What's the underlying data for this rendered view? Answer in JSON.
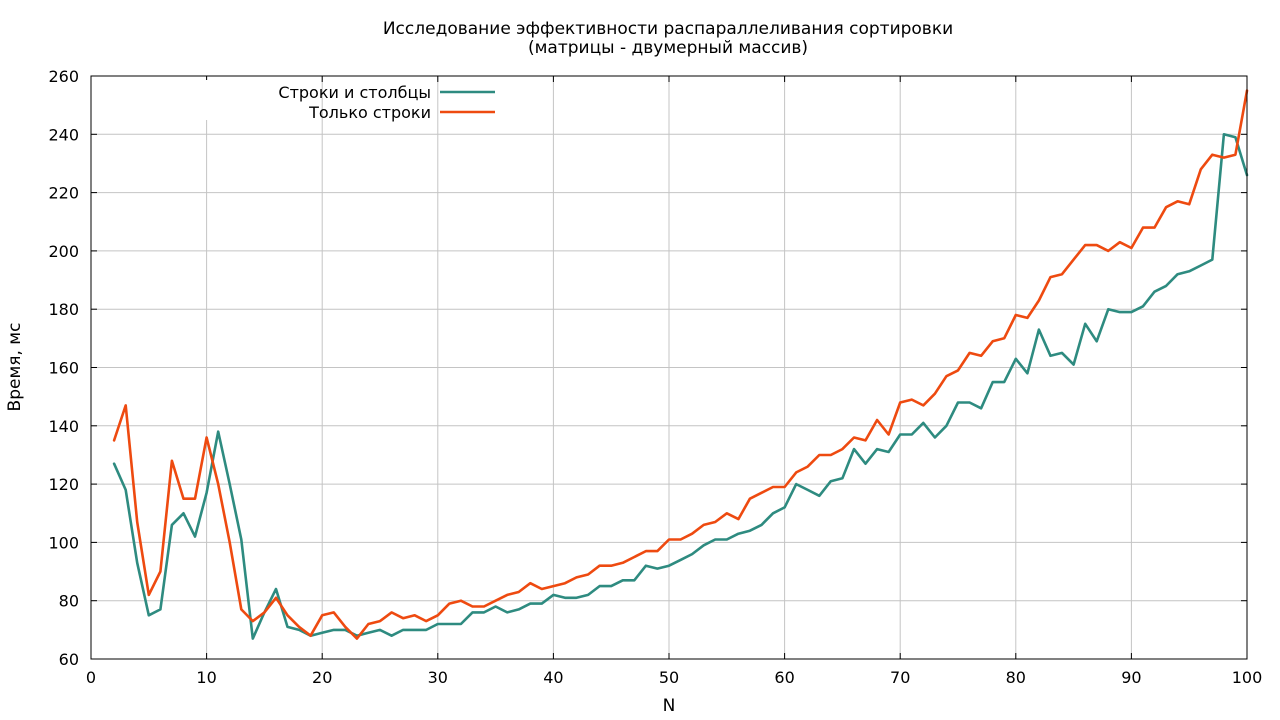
{
  "chart_data": {
    "type": "line",
    "title": "Исследование эффективности распараллеливания сортировки",
    "subtitle": "(матрицы - двумерный массив)",
    "xlabel": "N",
    "ylabel": "Время, мс",
    "xlim": [
      0,
      100
    ],
    "ylim": [
      60,
      260
    ],
    "xticks": [
      0,
      10,
      20,
      30,
      40,
      50,
      60,
      70,
      80,
      90,
      100
    ],
    "yticks": [
      60,
      80,
      100,
      120,
      140,
      160,
      180,
      200,
      220,
      240,
      260
    ],
    "grid": true,
    "legend_position": "top-left",
    "x": [
      2,
      3,
      4,
      5,
      6,
      7,
      8,
      9,
      10,
      11,
      12,
      13,
      14,
      15,
      16,
      17,
      18,
      19,
      20,
      21,
      22,
      23,
      24,
      25,
      26,
      27,
      28,
      29,
      30,
      31,
      32,
      33,
      34,
      35,
      36,
      37,
      38,
      39,
      40,
      41,
      42,
      43,
      44,
      45,
      46,
      47,
      48,
      49,
      50,
      51,
      52,
      53,
      54,
      55,
      56,
      57,
      58,
      59,
      60,
      61,
      62,
      63,
      64,
      65,
      66,
      67,
      68,
      69,
      70,
      71,
      72,
      73,
      74,
      75,
      76,
      77,
      78,
      79,
      80,
      81,
      82,
      83,
      84,
      85,
      86,
      87,
      88,
      89,
      90,
      91,
      92,
      93,
      94,
      95,
      96,
      97,
      98,
      99,
      100
    ],
    "series": [
      {
        "name": "Строки и столбцы",
        "color": "#2e8b80",
        "values": [
          127,
          118,
          93,
          75,
          77,
          106,
          110,
          102,
          117,
          138,
          120,
          101,
          67,
          76,
          84,
          71,
          70,
          68,
          69,
          70,
          70,
          68,
          69,
          70,
          68,
          70,
          70,
          70,
          72,
          72,
          72,
          76,
          76,
          78,
          76,
          77,
          79,
          79,
          82,
          81,
          81,
          82,
          85,
          85,
          87,
          87,
          92,
          91,
          92,
          94,
          96,
          99,
          101,
          101,
          103,
          104,
          106,
          110,
          112,
          120,
          118,
          116,
          121,
          122,
          132,
          127,
          132,
          131,
          137,
          137,
          141,
          136,
          140,
          148,
          148,
          146,
          155,
          155,
          163,
          158,
          173,
          164,
          165,
          161,
          175,
          169,
          180,
          179,
          179,
          181,
          186,
          188,
          192,
          193,
          195,
          197,
          240,
          239,
          226
        ]
      },
      {
        "name": "Только строки",
        "color": "#ee4a10",
        "values": [
          135,
          147,
          107,
          82,
          90,
          128,
          115,
          115,
          136,
          120,
          100,
          77,
          73,
          76,
          81,
          75,
          71,
          68,
          75,
          76,
          71,
          67,
          72,
          73,
          76,
          74,
          75,
          73,
          75,
          79,
          80,
          78,
          78,
          80,
          82,
          83,
          86,
          84,
          85,
          86,
          88,
          89,
          92,
          92,
          93,
          95,
          97,
          97,
          101,
          101,
          103,
          106,
          107,
          110,
          108,
          115,
          117,
          119,
          119,
          124,
          126,
          130,
          130,
          132,
          136,
          135,
          142,
          137,
          148,
          149,
          147,
          151,
          157,
          159,
          165,
          164,
          169,
          170,
          178,
          177,
          183,
          191,
          192,
          197,
          202,
          202,
          200,
          203,
          201,
          208,
          208,
          215,
          217,
          216,
          228,
          233,
          232,
          233,
          255
        ]
      }
    ]
  }
}
